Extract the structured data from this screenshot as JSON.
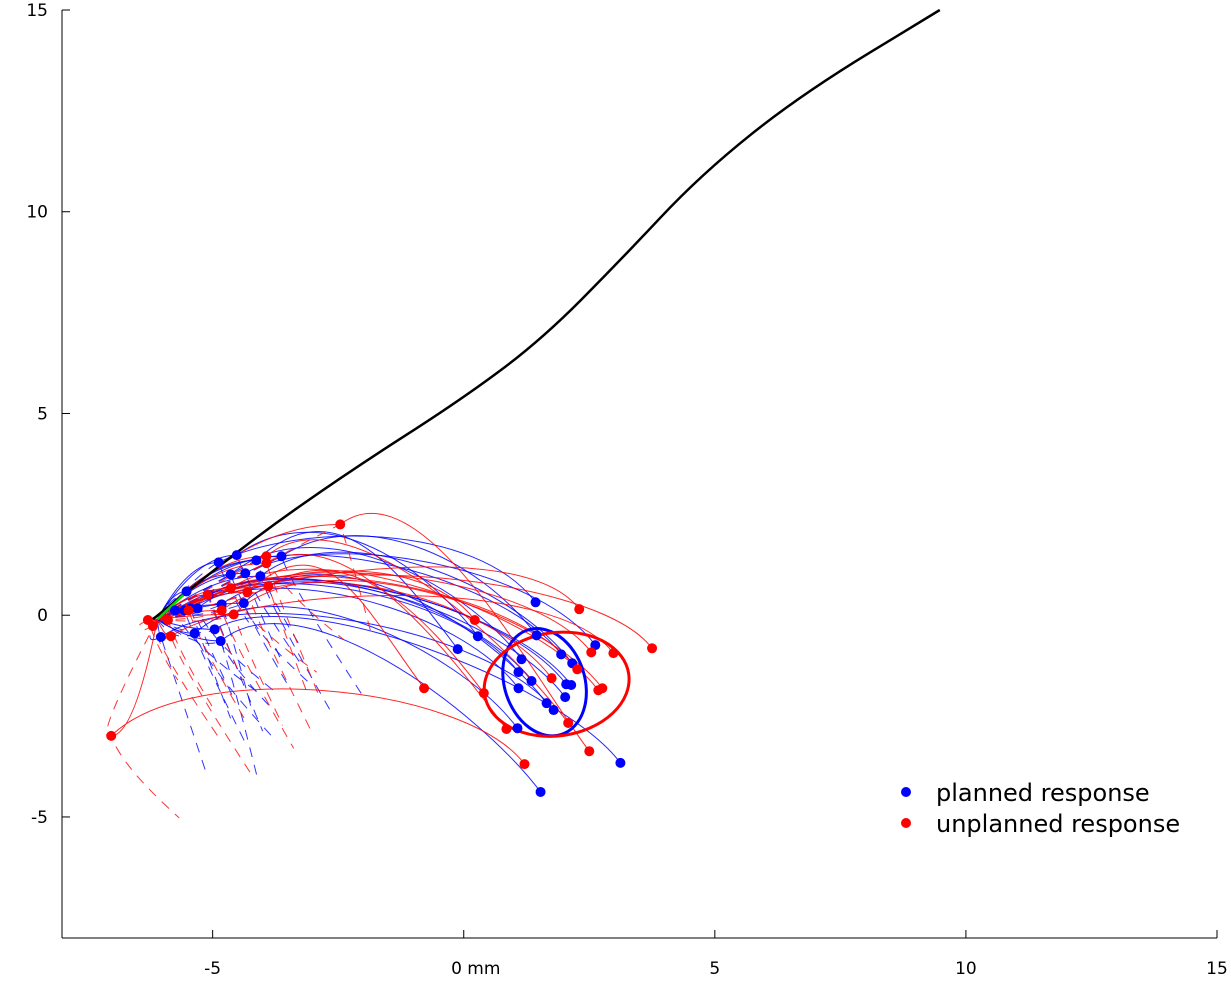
{
  "chart_data": {
    "type": "scatter",
    "title": "",
    "xlabel": "",
    "ylabel": "",
    "xlim": [
      -8,
      15
    ],
    "ylim": [
      -8,
      15
    ],
    "x_ticks": [
      {
        "v": -5,
        "label": "-5"
      },
      {
        "v": 0,
        "label": "0 mm"
      },
      {
        "v": 5,
        "label": "5"
      },
      {
        "v": 10,
        "label": "10"
      },
      {
        "v": 15,
        "label": "15"
      }
    ],
    "y_ticks": [
      {
        "v": -5,
        "label": "-5"
      },
      {
        "v": 0,
        "label": "0"
      },
      {
        "v": 5,
        "label": "5"
      },
      {
        "v": 10,
        "label": "10"
      },
      {
        "v": 15,
        "label": "15"
      }
    ],
    "grid": false,
    "legend_placement": "bottom-right",
    "reference_path": {
      "color": "#000000",
      "points": [
        [
          -6.19,
          -0.1
        ],
        [
          -4.21,
          1.88
        ],
        [
          -2.22,
          3.61
        ],
        [
          -0.04,
          5.35
        ],
        [
          1.55,
          6.83
        ],
        [
          3.13,
          8.81
        ],
        [
          4.72,
          10.92
        ],
        [
          6.71,
          12.9
        ],
        [
          9.48,
          15.0
        ]
      ],
      "initial_segment": {
        "color": "#00dd00",
        "points": [
          [
            -6.1,
            -0.1
          ],
          [
            -5.5,
            0.6
          ]
        ]
      }
    },
    "series": [
      {
        "name": "planned response",
        "color": "#0000ff",
        "start_points": [
          [
            -4.88,
            1.31
          ],
          [
            -4.52,
            1.49
          ],
          [
            -4.13,
            1.36
          ],
          [
            -3.63,
            1.46
          ],
          [
            -4.64,
            1.01
          ],
          [
            -4.35,
            1.04
          ],
          [
            -4.05,
            0.97
          ],
          [
            -5.52,
            0.59
          ],
          [
            -5.75,
            0.12
          ],
          [
            -5.56,
            0.12
          ],
          [
            -5.44,
            0.17
          ],
          [
            -5.3,
            0.17
          ],
          [
            -5.08,
            0.5
          ],
          [
            -4.82,
            0.27
          ],
          [
            -4.38,
            0.3
          ],
          [
            -6.03,
            -0.54
          ],
          [
            -5.36,
            -0.45
          ],
          [
            -4.96,
            -0.35
          ],
          [
            -4.84,
            -0.64
          ]
        ],
        "end_points": [
          [
            1.43,
            0.32
          ],
          [
            0.28,
            -0.52
          ],
          [
            -0.12,
            -0.84
          ],
          [
            1.45,
            -0.5
          ],
          [
            1.15,
            -1.09
          ],
          [
            2.62,
            -0.74
          ],
          [
            2.16,
            -1.19
          ],
          [
            1.94,
            -0.97
          ],
          [
            1.09,
            -1.41
          ],
          [
            1.35,
            -1.63
          ],
          [
            1.09,
            -1.81
          ],
          [
            2.04,
            -1.71
          ],
          [
            2.14,
            -1.73
          ],
          [
            2.02,
            -2.03
          ],
          [
            1.65,
            -2.18
          ],
          [
            1.79,
            -2.35
          ],
          [
            1.07,
            -2.8
          ],
          [
            3.12,
            -3.66
          ],
          [
            1.53,
            -4.38
          ]
        ],
        "ellipse": {
          "center": [
            1.61,
            -1.66
          ],
          "semi_axes": [
            0.8,
            1.36
          ],
          "rotation_deg": -18
        }
      },
      {
        "name": "unplanned response",
        "color": "#ff0000",
        "start_points": [
          [
            -6.29,
            -0.12
          ],
          [
            -6.19,
            -0.27
          ],
          [
            -5.89,
            -0.12
          ],
          [
            -5.83,
            -0.52
          ],
          [
            -5.48,
            0.12
          ],
          [
            -5.1,
            0.5
          ],
          [
            -4.82,
            0.12
          ],
          [
            -4.58,
            0.02
          ],
          [
            -4.64,
            0.67
          ],
          [
            -4.31,
            0.57
          ],
          [
            -3.89,
            0.72
          ],
          [
            -3.93,
            1.46
          ],
          [
            -3.93,
            1.29
          ],
          [
            -2.46,
            2.25
          ],
          [
            -7.02,
            -2.99
          ]
        ],
        "end_points": [
          [
            2.3,
            0.15
          ],
          [
            0.22,
            -0.12
          ],
          [
            3.75,
            -0.82
          ],
          [
            2.98,
            -0.94
          ],
          [
            2.54,
            -0.92
          ],
          [
            2.26,
            -1.34
          ],
          [
            1.75,
            -1.56
          ],
          [
            2.76,
            -1.81
          ],
          [
            2.68,
            -1.86
          ],
          [
            -0.79,
            -1.81
          ],
          [
            0.4,
            -1.93
          ],
          [
            2.08,
            -2.67
          ],
          [
            0.85,
            -2.82
          ],
          [
            2.5,
            -3.37
          ],
          [
            1.21,
            -3.69
          ]
        ],
        "ellipse": {
          "center": [
            1.85,
            -1.71
          ],
          "semi_axes": [
            1.45,
            1.28
          ],
          "rotation_deg": -8
        }
      }
    ]
  }
}
